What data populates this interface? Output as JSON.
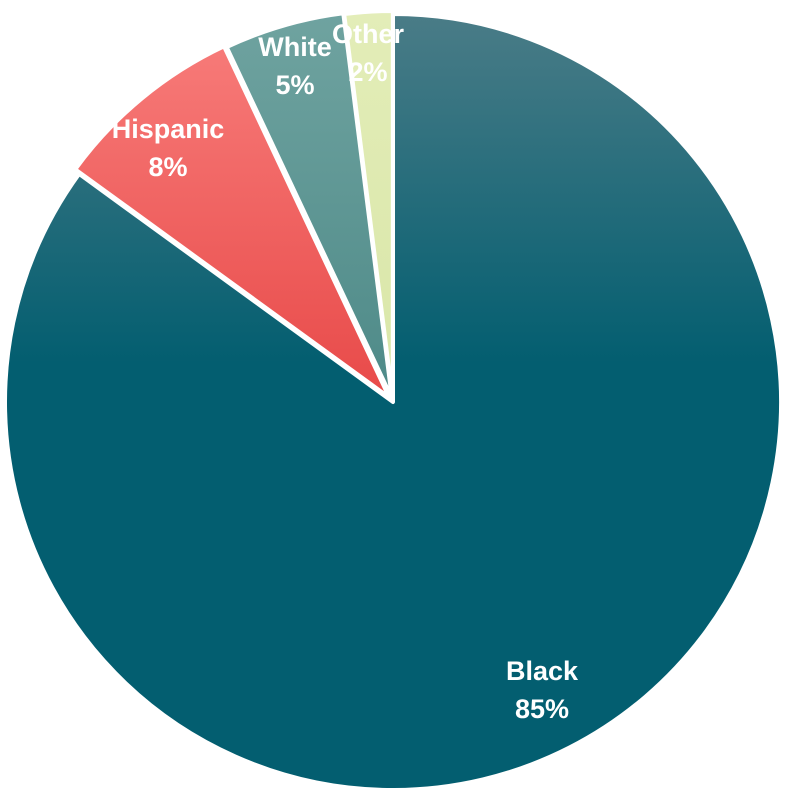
{
  "chart_data": {
    "type": "pie",
    "title": "",
    "slices": [
      {
        "label": "Black",
        "value": 85,
        "value_label": "85%",
        "color": "#035E70",
        "gradient_top": "#4A7C87"
      },
      {
        "label": "Hispanic",
        "value": 8,
        "value_label": "8%",
        "color": "#E84A49",
        "gradient_top": "#F77A78"
      },
      {
        "label": "White",
        "value": 5,
        "value_label": "5%",
        "color": "#4E8A88",
        "gradient_top": "#6FA3A0"
      },
      {
        "label": "Other",
        "value": 2,
        "value_label": "2%",
        "color": "#D9E6A8",
        "gradient_top": "#E3EDB8"
      }
    ],
    "legend": "none",
    "labels_inside_slices": true
  }
}
